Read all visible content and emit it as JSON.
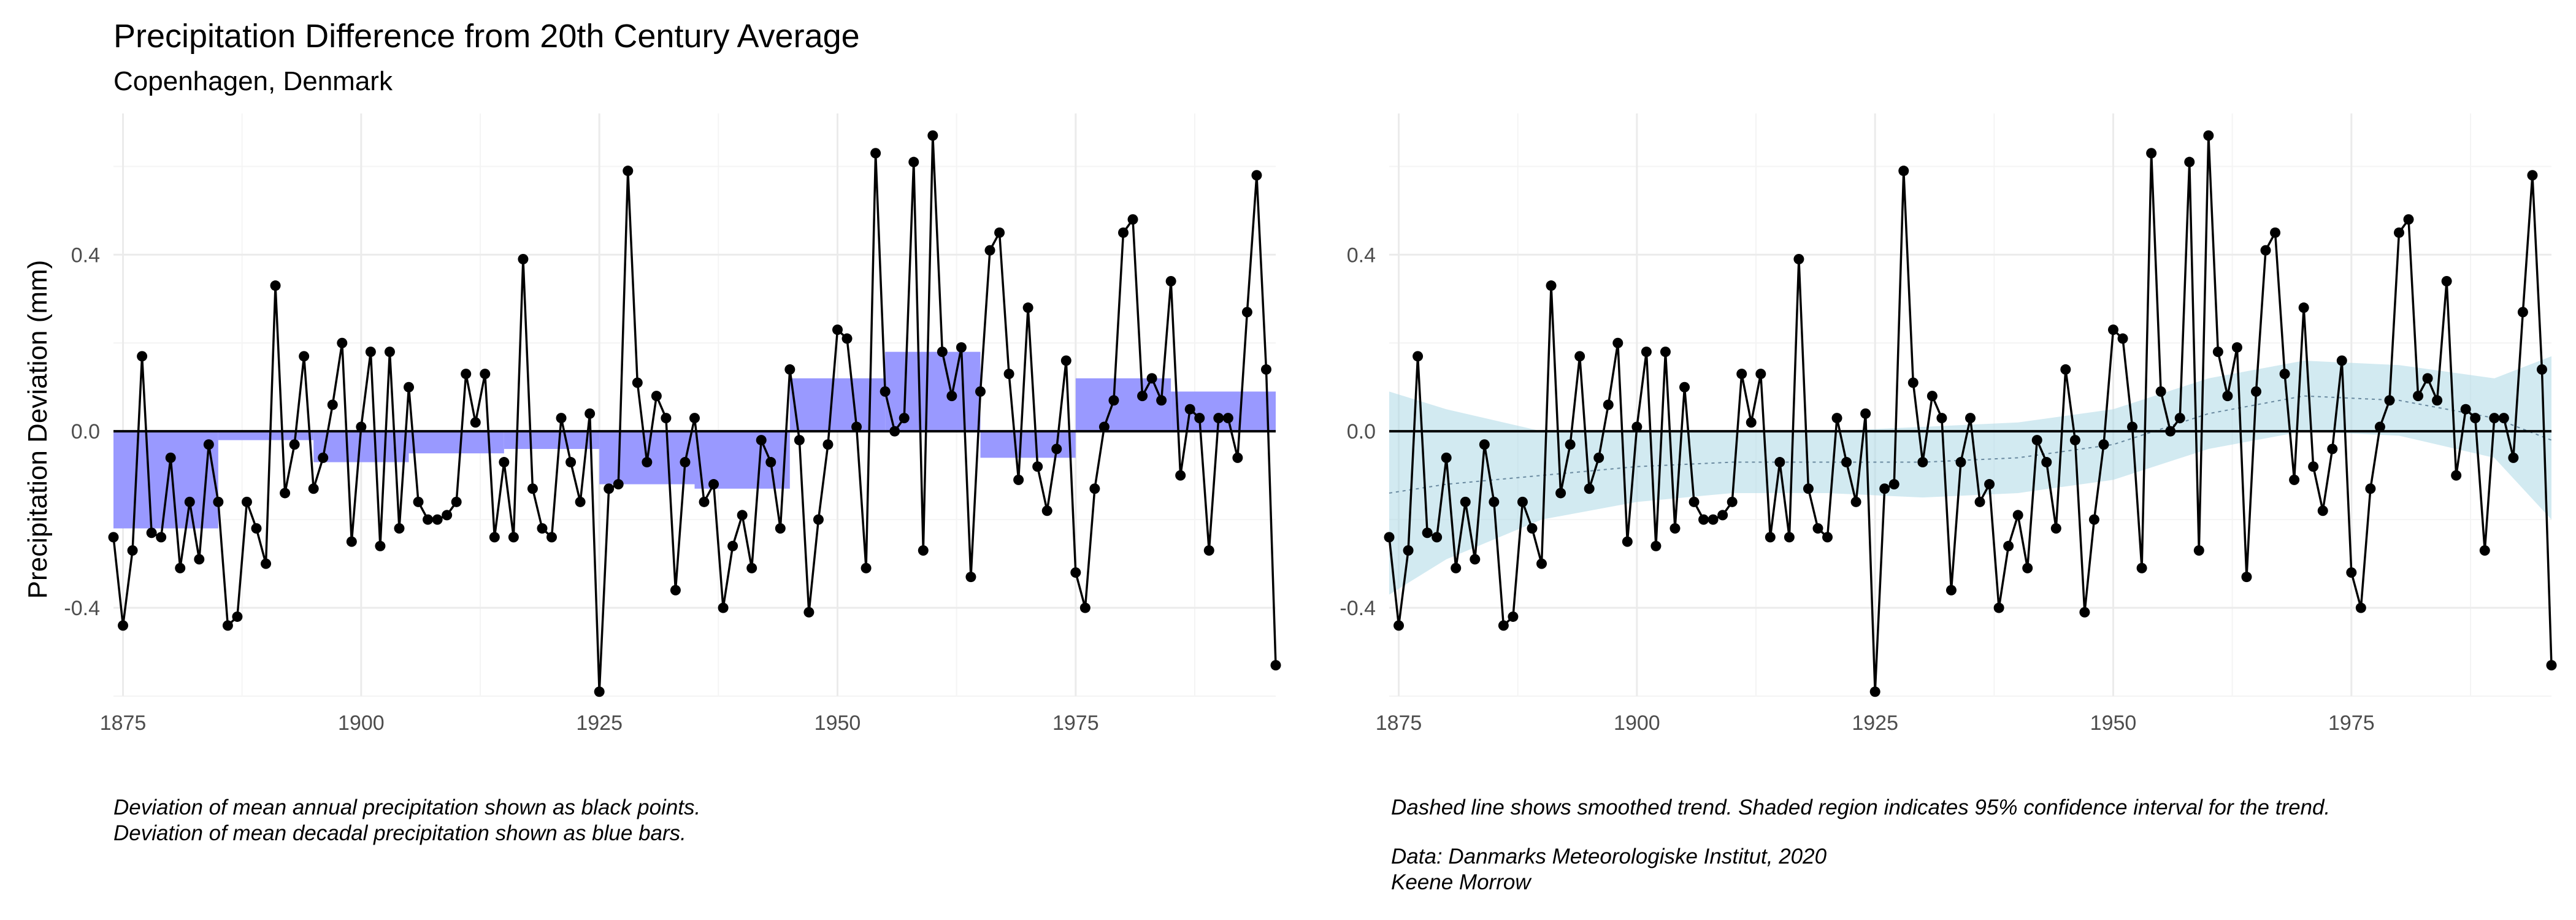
{
  "title": "Precipitation Difference from 20th Century Average",
  "subtitle": "Copenhagen, Denmark",
  "captions": {
    "left_line1": "Deviation of mean annual precipitation shown as black points.",
    "left_line2": "Deviation of mean decadal precipitation shown as blue bars.",
    "right_line1": "Dashed line shows smoothed trend. Shaded region indicates 95% confidence interval for the trend.",
    "right_line2": "Data: Danmarks Meteorologiske Institut, 2020",
    "right_line3": "Keene Morrow"
  },
  "colors": {
    "points": "#000000",
    "decadal_bars": "#9999ff",
    "confidence_band": "#add8e6",
    "grid_major": "#ebebeb",
    "grid_minor": "#f4f4f4"
  },
  "chart_data": [
    {
      "type": "line",
      "panel": "left",
      "ylabel": "Precipitation Deviation (mm)",
      "xlabel": "",
      "xlim": [
        1874,
        1996
      ],
      "ylim": [
        -0.6,
        0.72
      ],
      "x_ticks": [
        1875,
        1900,
        1925,
        1950,
        1975
      ],
      "x_tick_labels": [
        "1875",
        "1900",
        "1925",
        "1950",
        "1975"
      ],
      "y_ticks": [
        -0.4,
        0.0,
        0.4
      ],
      "y_tick_labels": [
        "-0.4",
        "0.0",
        "0.4"
      ],
      "grid": true,
      "zero_line": true,
      "annual_series": {
        "years": [
          1874,
          1875,
          1876,
          1877,
          1878,
          1879,
          1880,
          1881,
          1882,
          1883,
          1884,
          1885,
          1886,
          1887,
          1888,
          1889,
          1890,
          1891,
          1892,
          1893,
          1894,
          1895,
          1896,
          1897,
          1898,
          1899,
          1900,
          1901,
          1902,
          1903,
          1904,
          1905,
          1906,
          1907,
          1908,
          1909,
          1910,
          1911,
          1912,
          1913,
          1914,
          1915,
          1916,
          1917,
          1918,
          1919,
          1920,
          1921,
          1922,
          1923,
          1924,
          1925,
          1926,
          1927,
          1928,
          1929,
          1930,
          1931,
          1932,
          1933,
          1934,
          1935,
          1936,
          1937,
          1938,
          1939,
          1940,
          1941,
          1942,
          1943,
          1944,
          1945,
          1946,
          1947,
          1948,
          1949,
          1950,
          1951,
          1952,
          1953,
          1954,
          1955,
          1956,
          1957,
          1958,
          1959,
          1960,
          1961,
          1962,
          1963,
          1964,
          1965,
          1966,
          1967,
          1968,
          1969,
          1970,
          1971,
          1972,
          1973,
          1974,
          1975,
          1976,
          1977,
          1978,
          1979,
          1980,
          1981,
          1982,
          1983,
          1984,
          1985,
          1986,
          1987,
          1988,
          1989,
          1990,
          1991,
          1992,
          1993,
          1994,
          1995,
          1996
        ],
        "values": [
          -0.24,
          -0.44,
          -0.27,
          0.17,
          -0.23,
          -0.24,
          -0.06,
          -0.31,
          -0.16,
          -0.29,
          -0.03,
          -0.16,
          -0.44,
          -0.42,
          -0.16,
          -0.22,
          -0.3,
          0.33,
          -0.14,
          -0.03,
          0.17,
          -0.13,
          -0.06,
          0.06,
          0.2,
          -0.25,
          0.01,
          0.18,
          -0.26,
          0.18,
          -0.22,
          0.1,
          -0.16,
          -0.2,
          -0.2,
          -0.19,
          -0.16,
          0.13,
          0.02,
          0.13,
          -0.24,
          -0.07,
          -0.24,
          0.39,
          -0.13,
          -0.22,
          -0.24,
          0.03,
          -0.07,
          -0.16,
          0.04,
          -0.59,
          -0.13,
          -0.12,
          0.59,
          0.11,
          -0.07,
          0.08,
          0.03,
          -0.36,
          -0.07,
          0.03,
          -0.16,
          -0.12,
          -0.4,
          -0.26,
          -0.19,
          -0.31,
          -0.02,
          -0.07,
          -0.22,
          0.14,
          -0.02,
          -0.41,
          -0.2,
          -0.03,
          0.23,
          0.21,
          0.01,
          -0.31,
          0.63,
          0.09,
          0.0,
          0.03,
          0.61,
          -0.27,
          0.67,
          0.18,
          0.08,
          0.19,
          -0.33,
          0.09,
          0.41,
          0.45,
          0.13,
          -0.11,
          0.28,
          -0.08,
          -0.18,
          -0.04,
          0.16,
          -0.32,
          -0.4,
          -0.13,
          0.01,
          0.07,
          0.45,
          0.48,
          0.08,
          0.12,
          0.07,
          0.34,
          -0.1,
          0.05,
          0.03,
          -0.27,
          0.03,
          0.03,
          -0.06,
          0.27,
          0.58,
          0.14,
          -0.53
        ]
      },
      "decadal_bars": [
        {
          "start": 1874,
          "end": 1885,
          "value": -0.22
        },
        {
          "start": 1885,
          "end": 1895,
          "value": -0.02
        },
        {
          "start": 1895,
          "end": 1905,
          "value": -0.07
        },
        {
          "start": 1905,
          "end": 1915,
          "value": -0.05
        },
        {
          "start": 1915,
          "end": 1925,
          "value": -0.04
        },
        {
          "start": 1925,
          "end": 1935,
          "value": -0.12
        },
        {
          "start": 1935,
          "end": 1945,
          "value": -0.13
        },
        {
          "start": 1945,
          "end": 1955,
          "value": 0.12
        },
        {
          "start": 1955,
          "end": 1965,
          "value": 0.18
        },
        {
          "start": 1965,
          "end": 1975,
          "value": -0.06
        },
        {
          "start": 1975,
          "end": 1985,
          "value": 0.12
        },
        {
          "start": 1985,
          "end": 1996,
          "value": 0.09
        }
      ]
    },
    {
      "type": "line",
      "panel": "right",
      "xlabel": "",
      "xlim": [
        1874,
        1996
      ],
      "ylim": [
        -0.6,
        0.72
      ],
      "x_ticks": [
        1875,
        1900,
        1925,
        1950,
        1975
      ],
      "x_tick_labels": [
        "1875",
        "1900",
        "1925",
        "1950",
        "1975"
      ],
      "y_ticks": [
        -0.4,
        0.0,
        0.4
      ],
      "y_tick_labels": [
        "-0.4",
        "0.0",
        "0.4"
      ],
      "grid": true,
      "zero_line": true,
      "trend": {
        "years": [
          1874,
          1880,
          1890,
          1900,
          1910,
          1920,
          1930,
          1940,
          1950,
          1960,
          1970,
          1980,
          1990,
          1996
        ],
        "fit": [
          -0.14,
          -0.12,
          -0.1,
          -0.08,
          -0.07,
          -0.07,
          -0.07,
          -0.06,
          -0.03,
          0.04,
          0.08,
          0.07,
          0.03,
          -0.02
        ],
        "lower": [
          -0.37,
          -0.29,
          -0.2,
          -0.16,
          -0.14,
          -0.14,
          -0.15,
          -0.14,
          -0.11,
          -0.04,
          0.0,
          -0.01,
          -0.06,
          -0.2
        ],
        "upper": [
          0.09,
          0.05,
          0.0,
          0.0,
          0.0,
          0.0,
          0.01,
          0.02,
          0.05,
          0.12,
          0.16,
          0.15,
          0.12,
          0.17
        ]
      }
    }
  ]
}
